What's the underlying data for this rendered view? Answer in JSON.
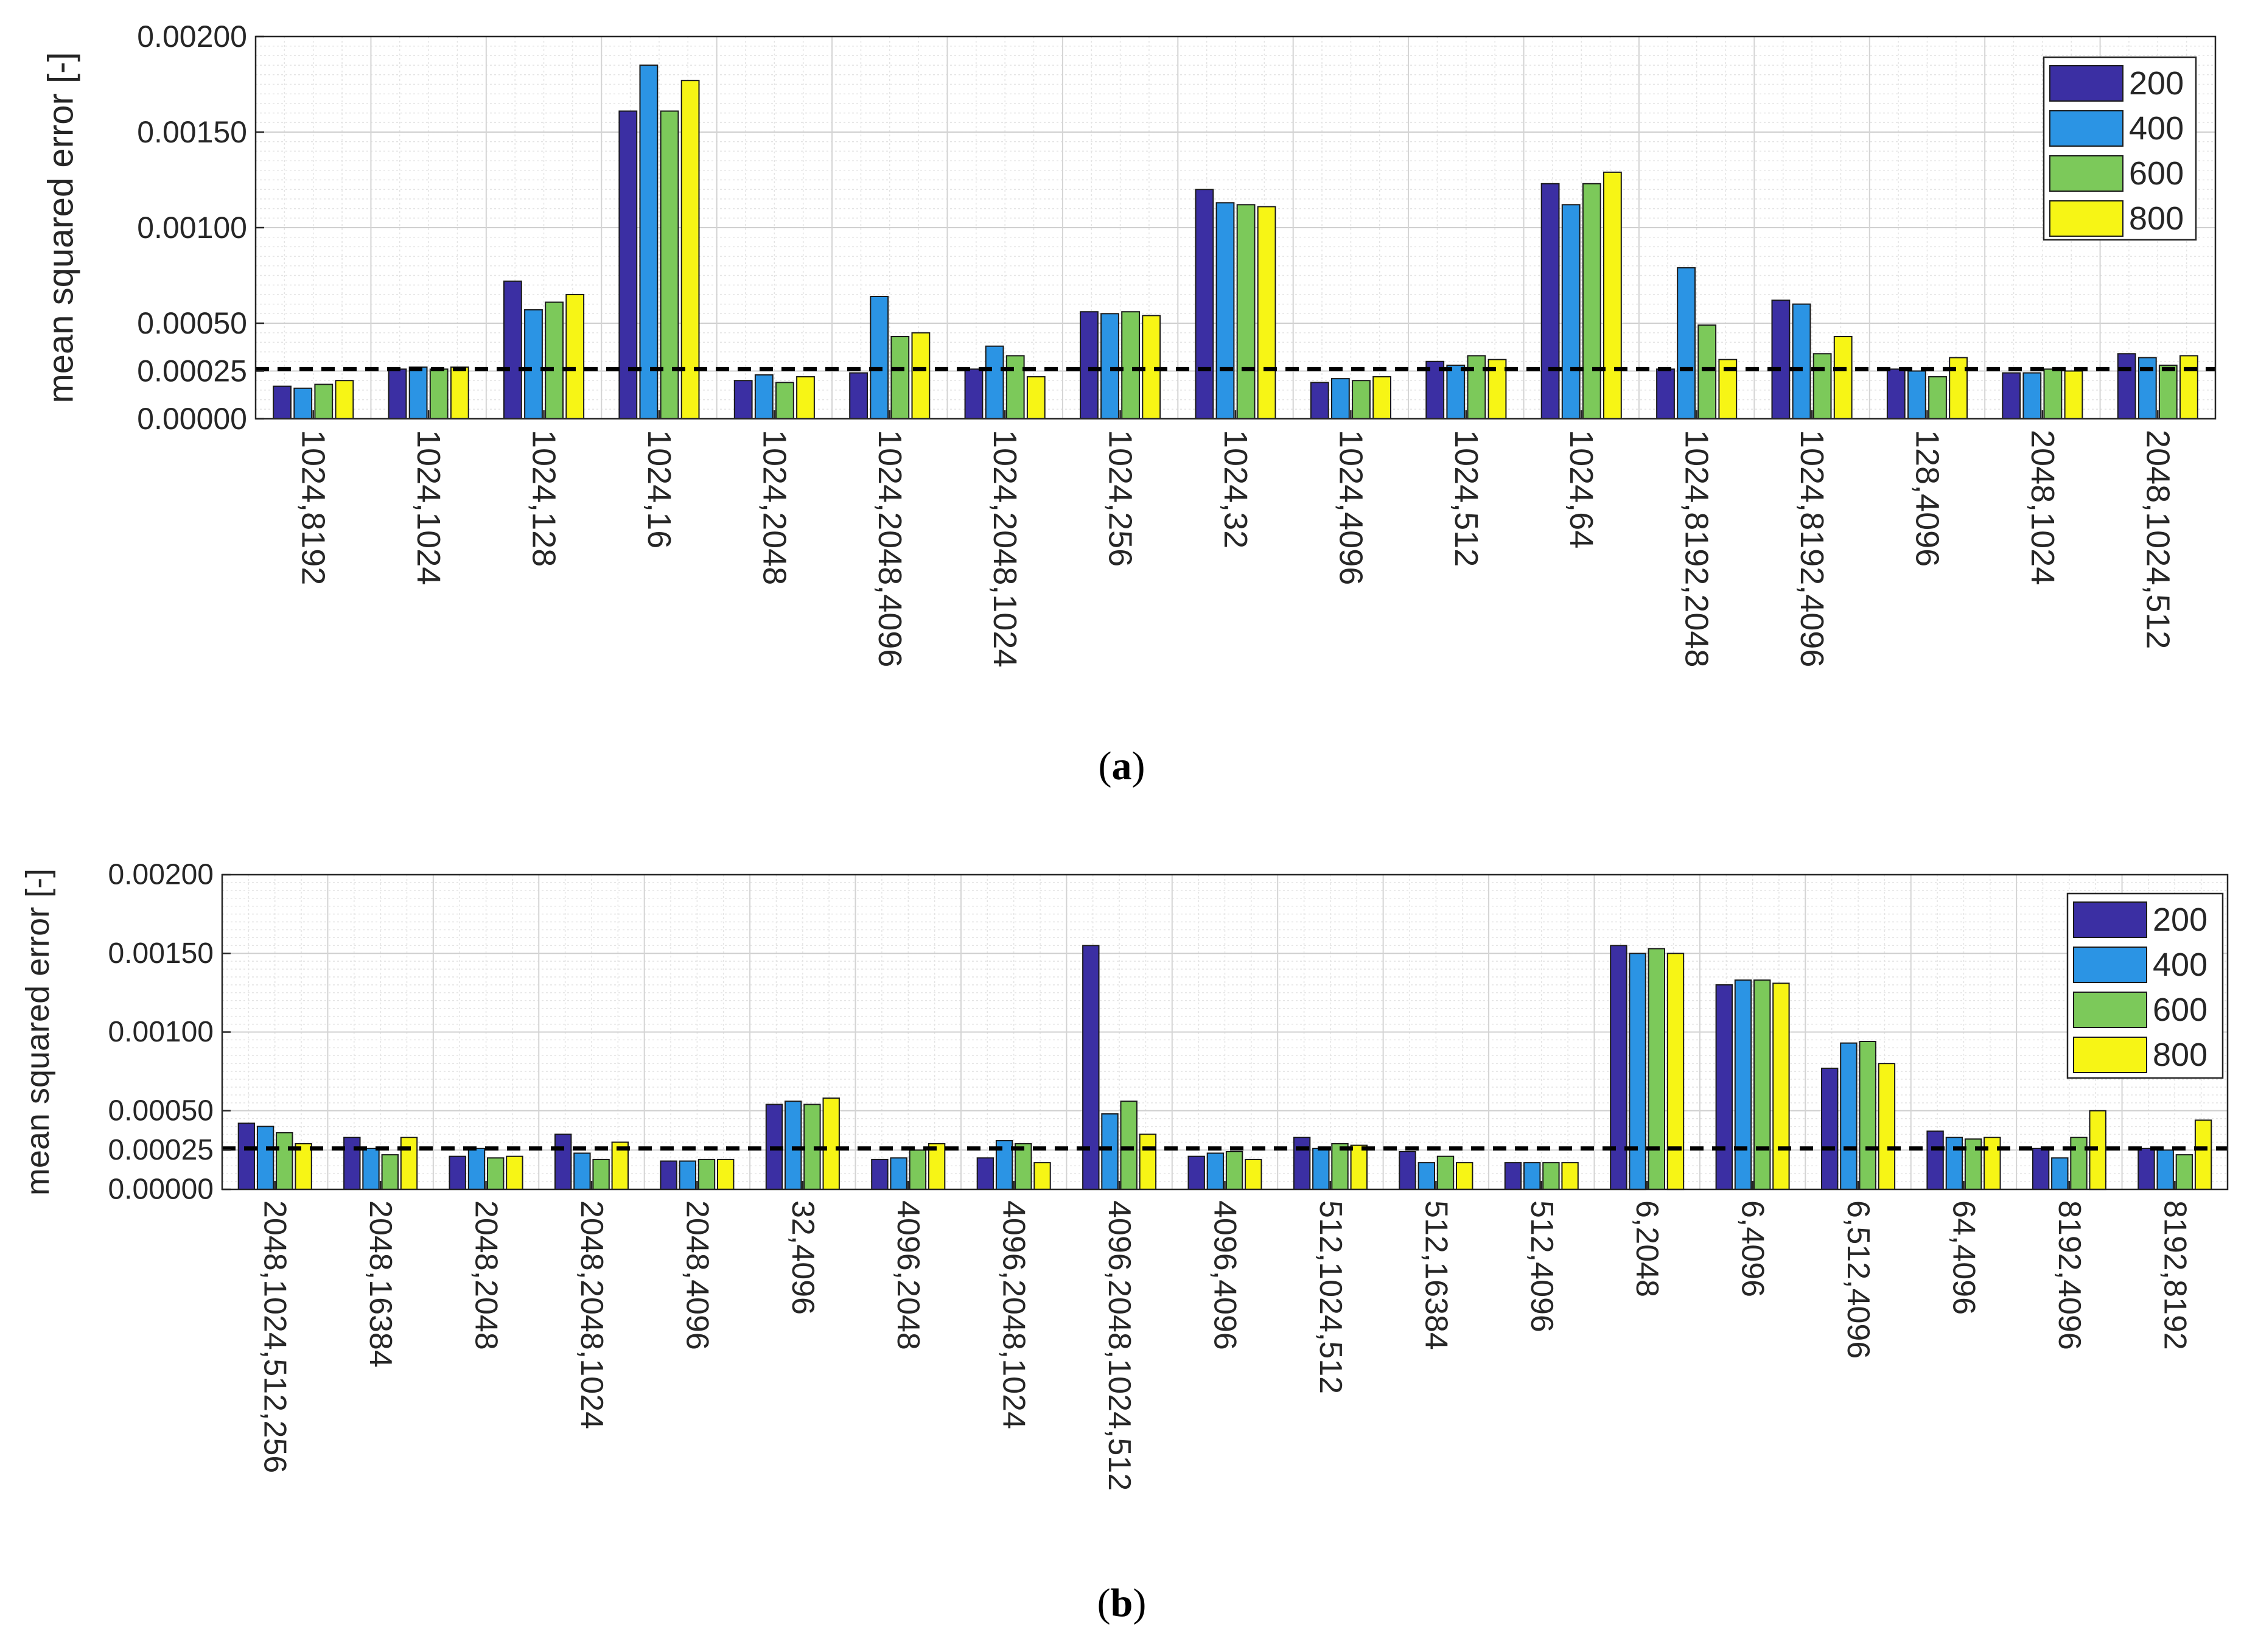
{
  "legend_colors": {
    "200": "#3b2fa3",
    "400": "#2b94e4",
    "600": "#7cc95a",
    "800": "#f7f515"
  },
  "reference_line_color": "#000000",
  "chart_data": [
    {
      "id": "a",
      "type": "bar",
      "caption_label": "a",
      "ylabel": "mean squared error [-]",
      "ylim": [
        0,
        0.002
      ],
      "yticks": [
        "0.00000",
        "0.00025",
        "0.00050",
        "0.00100",
        "0.00150",
        "0.00200"
      ],
      "ytick_values": [
        0,
        0.00025,
        0.0005,
        0.001,
        0.0015,
        0.002
      ],
      "grid": true,
      "legend_position": "top-right",
      "reference_line": 0.00026,
      "categories": [
        "1024,8192",
        "1024,1024",
        "1024,128",
        "1024,16",
        "1024,2048",
        "1024,2048,4096",
        "1024,2048,1024",
        "1024,256",
        "1024,32",
        "1024,4096",
        "1024,512",
        "1024,64",
        "1024,8192,2048",
        "1024,8192,4096",
        "128,4096",
        "2048,1024",
        "2048,1024,512"
      ],
      "series": [
        {
          "name": "200",
          "values": [
            0.00017,
            0.00026,
            0.00072,
            0.00161,
            0.0002,
            0.00024,
            0.00026,
            0.00056,
            0.0012,
            0.00019,
            0.0003,
            0.00123,
            0.00026,
            0.00062,
            0.00026,
            0.00024,
            0.00034
          ]
        },
        {
          "name": "400",
          "values": [
            0.00016,
            0.00027,
            0.00057,
            0.00185,
            0.00023,
            0.00064,
            0.00038,
            0.00055,
            0.00113,
            0.00021,
            0.00028,
            0.00112,
            0.00079,
            0.0006,
            0.00025,
            0.00024,
            0.00032
          ]
        },
        {
          "name": "600",
          "values": [
            0.00018,
            0.00026,
            0.00061,
            0.00161,
            0.00019,
            0.00043,
            0.00033,
            0.00056,
            0.00112,
            0.0002,
            0.00033,
            0.00123,
            0.00049,
            0.00034,
            0.00022,
            0.00026,
            0.00028
          ]
        },
        {
          "name": "800",
          "values": [
            0.0002,
            0.00027,
            0.00065,
            0.00177,
            0.00022,
            0.00045,
            0.00022,
            0.00054,
            0.00111,
            0.00022,
            0.00031,
            0.00129,
            0.00031,
            0.00043,
            0.00032,
            0.00025,
            0.00033
          ]
        }
      ]
    },
    {
      "id": "b",
      "type": "bar",
      "caption_label": "b",
      "ylabel": "mean squared error [-]",
      "ylim": [
        0,
        0.002
      ],
      "yticks": [
        "0.00000",
        "0.00025",
        "0.00050",
        "0.00100",
        "0.00150",
        "0.00200"
      ],
      "ytick_values": [
        0,
        0.00025,
        0.0005,
        0.001,
        0.0015,
        0.002
      ],
      "grid": true,
      "legend_position": "top-right",
      "reference_line": 0.00026,
      "categories": [
        "2048,1024,512,256",
        "2048,16384",
        "2048,2048",
        "2048,2048,1024",
        "2048,4096",
        "32,4096",
        "4096,2048",
        "4096,2048,1024",
        "4096,2048,1024,512",
        "4096,4096",
        "512,1024,512",
        "512,16384",
        "512,4096",
        "6,2048",
        "6,4096",
        "6,512,4096",
        "64,4096",
        "8192,4096",
        "8192,8192"
      ],
      "series": [
        {
          "name": "200",
          "values": [
            0.00042,
            0.00033,
            0.00021,
            0.00035,
            0.00018,
            0.00054,
            0.00019,
            0.0002,
            0.00155,
            0.00021,
            0.00033,
            0.00024,
            0.00017,
            0.00155,
            0.0013,
            0.00077,
            0.00037,
            0.00026,
            0.00026
          ]
        },
        {
          "name": "400",
          "values": [
            0.0004,
            0.00026,
            0.00026,
            0.00023,
            0.00018,
            0.00056,
            0.0002,
            0.00031,
            0.00048,
            0.00023,
            0.00026,
            0.00017,
            0.00017,
            0.0015,
            0.00133,
            0.00093,
            0.00033,
            0.0002,
            0.00025
          ]
        },
        {
          "name": "600",
          "values": [
            0.00036,
            0.00022,
            0.0002,
            0.00019,
            0.00019,
            0.00054,
            0.00025,
            0.00029,
            0.00056,
            0.00024,
            0.00029,
            0.00021,
            0.00017,
            0.00153,
            0.00133,
            0.00094,
            0.00032,
            0.00033,
            0.00022
          ]
        },
        {
          "name": "800",
          "values": [
            0.00029,
            0.00033,
            0.00021,
            0.0003,
            0.00019,
            0.00058,
            0.00029,
            0.00017,
            0.00035,
            0.00019,
            0.00028,
            0.00017,
            0.00017,
            0.0015,
            0.00131,
            0.0008,
            0.00033,
            0.0005,
            0.00044
          ]
        }
      ]
    }
  ]
}
